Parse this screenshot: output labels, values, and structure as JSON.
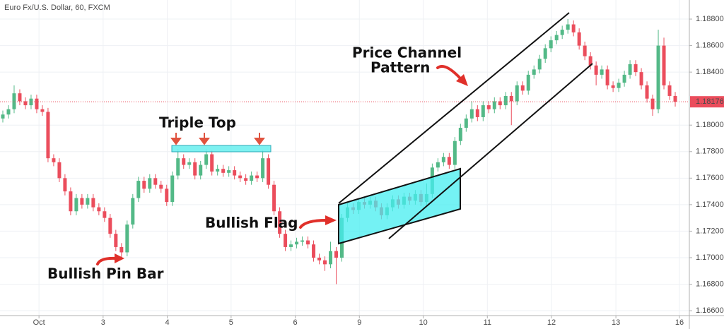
{
  "chart_data": {
    "type": "candlestick",
    "title": "Euro Fx/U.S. Dollar, 60, FXCM",
    "up_color": "#53b987",
    "down_color": "#eb4d5c",
    "open": [
      1.1805,
      1.1808,
      1.1812,
      1.1824,
      1.1818,
      1.1815,
      1.182,
      1.1812,
      1.181,
      1.1775,
      1.1772,
      1.176,
      1.175,
      1.1735,
      1.1745,
      1.174,
      1.1745,
      1.1738,
      1.1735,
      1.173,
      1.1718,
      1.1708,
      1.1704,
      1.1725,
      1.1745,
      1.1758,
      1.1752,
      1.176,
      1.1755,
      1.1752,
      1.1742,
      1.1762,
      1.1775,
      1.177,
      1.1772,
      1.1762,
      1.177,
      1.1778,
      1.1765,
      1.1767,
      1.1764,
      1.1766,
      1.1762,
      1.176,
      1.1758,
      1.1762,
      1.176,
      1.1775,
      1.1755,
      1.1735,
      1.1718,
      1.1708,
      1.171,
      1.1712,
      1.1713,
      1.171,
      1.17,
      1.1698,
      1.1695,
      1.1705,
      1.17,
      1.173,
      1.1738,
      1.1736,
      1.1742,
      1.174,
      1.1743,
      1.1738,
      1.1732,
      1.1738,
      1.1744,
      1.174,
      1.1746,
      1.1743,
      1.1748,
      1.1742,
      1.1748,
      1.1768,
      1.1772,
      1.1776,
      1.177,
      1.1788,
      1.1798,
      1.1805,
      1.1812,
      1.1806,
      1.1815,
      1.1812,
      1.1818,
      1.1815,
      1.1822,
      1.1818,
      1.183,
      1.1826,
      1.1838,
      1.1842,
      1.185,
      1.1858,
      1.1864,
      1.1868,
      1.1872,
      1.1876,
      1.187,
      1.186,
      1.1852,
      1.1845,
      1.1838,
      1.1842,
      1.183,
      1.1828,
      1.1832,
      1.1838,
      1.1846,
      1.184,
      1.183,
      1.182,
      1.1812,
      1.186,
      1.183,
      1.1822
    ],
    "high": [
      1.1811,
      1.1815,
      1.183,
      1.1827,
      1.1821,
      1.1823,
      1.1823,
      1.1815,
      1.1813,
      1.1778,
      1.1775,
      1.1763,
      1.1753,
      1.1748,
      1.1748,
      1.1748,
      1.1748,
      1.1741,
      1.1738,
      1.1733,
      1.1721,
      1.1711,
      1.1728,
      1.1748,
      1.1761,
      1.1761,
      1.1763,
      1.1763,
      1.1758,
      1.1755,
      1.1765,
      1.1782,
      1.1778,
      1.1775,
      1.1775,
      1.1773,
      1.1782,
      1.1781,
      1.177,
      1.177,
      1.1769,
      1.1769,
      1.1765,
      1.1763,
      1.1765,
      1.1765,
      1.1781,
      1.1778,
      1.1758,
      1.1738,
      1.1721,
      1.1713,
      1.1715,
      1.1716,
      1.1716,
      1.1713,
      1.1703,
      1.1701,
      1.1712,
      1.1708,
      1.1733,
      1.1741,
      1.1741,
      1.1745,
      1.1745,
      1.1746,
      1.1746,
      1.1741,
      1.1741,
      1.1747,
      1.1747,
      1.1749,
      1.1749,
      1.1751,
      1.1751,
      1.1756,
      1.1771,
      1.1775,
      1.1779,
      1.1779,
      1.1791,
      1.1801,
      1.1808,
      1.1818,
      1.1815,
      1.1818,
      1.1818,
      1.1821,
      1.1821,
      1.1825,
      1.1825,
      1.1833,
      1.1833,
      1.1841,
      1.1845,
      1.1853,
      1.1861,
      1.1867,
      1.1871,
      1.1875,
      1.188,
      1.1879,
      1.1873,
      1.1863,
      1.1855,
      1.1848,
      1.1845,
      1.1845,
      1.1833,
      1.1835,
      1.1841,
      1.1849,
      1.1849,
      1.1843,
      1.1833,
      1.1823,
      1.1872,
      1.1866,
      1.1833,
      1.1825
    ],
    "low": [
      1.1802,
      1.1805,
      1.1809,
      1.1815,
      1.1812,
      1.1812,
      1.1809,
      1.1807,
      1.1772,
      1.1769,
      1.1757,
      1.1747,
      1.1732,
      1.1732,
      1.1737,
      1.1737,
      1.1735,
      1.1732,
      1.1727,
      1.1715,
      1.1705,
      1.17,
      1.1701,
      1.1722,
      1.1742,
      1.1749,
      1.1749,
      1.1752,
      1.1749,
      1.1739,
      1.1739,
      1.1759,
      1.1767,
      1.1767,
      1.1759,
      1.1759,
      1.1767,
      1.1762,
      1.1762,
      1.1761,
      1.1761,
      1.1759,
      1.1757,
      1.1755,
      1.1755,
      1.1757,
      1.1757,
      1.1752,
      1.1732,
      1.1715,
      1.1705,
      1.1705,
      1.1707,
      1.1709,
      1.1707,
      1.1697,
      1.1695,
      1.169,
      1.1692,
      1.168,
      1.1697,
      1.1727,
      1.1733,
      1.1733,
      1.1737,
      1.1737,
      1.1735,
      1.1729,
      1.1729,
      1.1735,
      1.1737,
      1.1737,
      1.174,
      1.174,
      1.1739,
      1.1739,
      1.1745,
      1.1765,
      1.1769,
      1.1767,
      1.1767,
      1.1785,
      1.1795,
      1.1802,
      1.1803,
      1.1803,
      1.1809,
      1.1809,
      1.1812,
      1.1812,
      1.18,
      1.1815,
      1.1823,
      1.1823,
      1.1835,
      1.1839,
      1.1847,
      1.1855,
      1.1861,
      1.1865,
      1.1869,
      1.1867,
      1.1857,
      1.1849,
      1.1842,
      1.183,
      1.1835,
      1.1827,
      1.1825,
      1.1825,
      1.1829,
      1.1835,
      1.1837,
      1.1827,
      1.1817,
      1.1807,
      1.1809,
      1.1827,
      1.1819,
      1.1814
    ],
    "close": [
      1.1808,
      1.1812,
      1.1824,
      1.1818,
      1.1815,
      1.182,
      1.1812,
      1.181,
      1.1775,
      1.1772,
      1.176,
      1.175,
      1.1735,
      1.1745,
      1.174,
      1.1745,
      1.1738,
      1.1735,
      1.173,
      1.1718,
      1.1708,
      1.1704,
      1.1725,
      1.1745,
      1.1758,
      1.1752,
      1.176,
      1.1755,
      1.1752,
      1.1742,
      1.1762,
      1.1775,
      1.177,
      1.1772,
      1.1762,
      1.177,
      1.1778,
      1.1765,
      1.1767,
      1.1764,
      1.1766,
      1.1762,
      1.176,
      1.1758,
      1.1762,
      1.176,
      1.1775,
      1.1755,
      1.1735,
      1.1718,
      1.1708,
      1.171,
      1.1712,
      1.1713,
      1.171,
      1.17,
      1.1698,
      1.1695,
      1.1705,
      1.17,
      1.173,
      1.1738,
      1.1736,
      1.1742,
      1.174,
      1.1743,
      1.1738,
      1.1732,
      1.1738,
      1.1744,
      1.174,
      1.1746,
      1.1743,
      1.1748,
      1.1742,
      1.1748,
      1.1768,
      1.1772,
      1.1776,
      1.177,
      1.1788,
      1.1798,
      1.1805,
      1.1812,
      1.1806,
      1.1815,
      1.1812,
      1.1818,
      1.1815,
      1.1822,
      1.1818,
      1.183,
      1.1826,
      1.1838,
      1.1842,
      1.185,
      1.1858,
      1.1864,
      1.1868,
      1.1872,
      1.1876,
      1.187,
      1.186,
      1.1852,
      1.1845,
      1.1838,
      1.1842,
      1.183,
      1.1828,
      1.1832,
      1.1838,
      1.1846,
      1.184,
      1.183,
      1.182,
      1.1812,
      1.186,
      1.183,
      1.1822,
      1.18176
    ],
    "xlim": [
      -0.5,
      121.5
    ],
    "xticks": [
      {
        "value": 6.4,
        "label": "Oct"
      },
      {
        "value": 17.75,
        "label": "3"
      },
      {
        "value": 29.1,
        "label": "4"
      },
      {
        "value": 40.4,
        "label": "5"
      },
      {
        "value": 51.75,
        "label": "6"
      },
      {
        "value": 63.1,
        "label": "9"
      },
      {
        "value": 74.4,
        "label": "10"
      },
      {
        "value": 85.75,
        "label": "11"
      },
      {
        "value": 97.1,
        "label": "12"
      },
      {
        "value": 108.5,
        "label": "13"
      },
      {
        "value": 119.75,
        "label": "16"
      }
    ],
    "ylim": [
      1.16563,
      1.18944
    ],
    "yticks": [
      {
        "value": 1.166,
        "label": "1.16600"
      },
      {
        "value": 1.168,
        "label": "1.16800"
      },
      {
        "value": 1.17,
        "label": "1.17000"
      },
      {
        "value": 1.172,
        "label": "1.17200"
      },
      {
        "value": 1.174,
        "label": "1.17400"
      },
      {
        "value": 1.176,
        "label": "1.17600"
      },
      {
        "value": 1.178,
        "label": "1.17800"
      },
      {
        "value": 1.18,
        "label": "1.18000"
      },
      {
        "value": 1.184,
        "label": "1.18400"
      },
      {
        "value": 1.186,
        "label": "1.18600"
      },
      {
        "value": 1.188,
        "label": "1.18800"
      }
    ],
    "grid": true,
    "annotations": {
      "triple_top": "Triple Top",
      "bullish_flag": "Bullish Flag",
      "pin_bar": "Bullish Pin Bar",
      "price_channel": [
        "Price Channel",
        "Pattern"
      ]
    }
  }
}
